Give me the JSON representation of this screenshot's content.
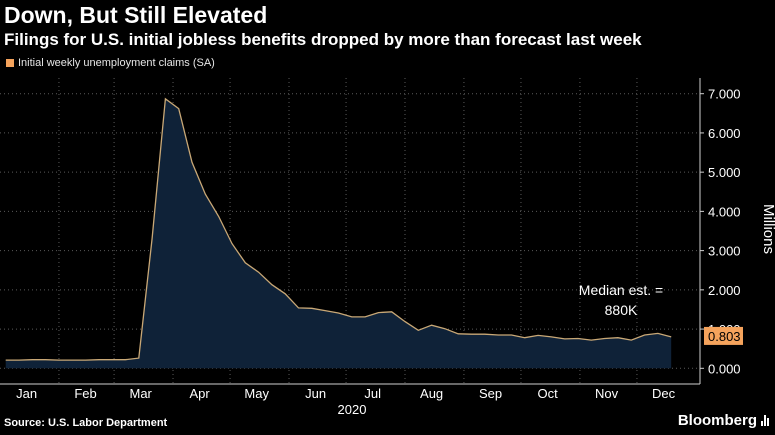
{
  "header": {
    "title": "Down, But Still Elevated",
    "subtitle": "Filings for U.S. initial jobless benefits dropped by more than forecast last week"
  },
  "legend": {
    "label": "Initial weekly unemployment claims (SA)",
    "color": "#f5a35c"
  },
  "annotation": {
    "line1": "Median est. =",
    "line2": "880K"
  },
  "last_value_badge": {
    "text": "0.803",
    "color": "#f5a35c"
  },
  "footer": {
    "source": "Source: U.S. Labor Department",
    "brand": "Bloomberg"
  },
  "colors": {
    "background": "#000000",
    "area_fill": "#0f2238",
    "line": "#c9a876",
    "grid": "#5a5a5a"
  },
  "chart_data": {
    "type": "area",
    "x": [
      "2020-01-04",
      "2020-01-11",
      "2020-01-18",
      "2020-01-25",
      "2020-02-01",
      "2020-02-08",
      "2020-02-15",
      "2020-02-22",
      "2020-02-29",
      "2020-03-07",
      "2020-03-14",
      "2020-03-21",
      "2020-03-28",
      "2020-04-04",
      "2020-04-11",
      "2020-04-18",
      "2020-04-25",
      "2020-05-02",
      "2020-05-09",
      "2020-05-16",
      "2020-05-23",
      "2020-05-30",
      "2020-06-06",
      "2020-06-13",
      "2020-06-20",
      "2020-06-27",
      "2020-07-04",
      "2020-07-11",
      "2020-07-18",
      "2020-07-25",
      "2020-08-01",
      "2020-08-08",
      "2020-08-15",
      "2020-08-22",
      "2020-08-29",
      "2020-09-05",
      "2020-09-12",
      "2020-09-19",
      "2020-09-26",
      "2020-10-03",
      "2020-10-10",
      "2020-10-17",
      "2020-10-24",
      "2020-10-31",
      "2020-11-07",
      "2020-11-14",
      "2020-11-21",
      "2020-11-28",
      "2020-12-05",
      "2020-12-12",
      "2020-12-19"
    ],
    "series": [
      {
        "name": "Initial weekly unemployment claims (SA)",
        "values": [
          0.21,
          0.21,
          0.22,
          0.22,
          0.21,
          0.21,
          0.21,
          0.22,
          0.22,
          0.22,
          0.26,
          3.31,
          6.87,
          6.62,
          5.25,
          4.44,
          3.87,
          3.18,
          2.69,
          2.45,
          2.13,
          1.9,
          1.54,
          1.53,
          1.47,
          1.41,
          1.31,
          1.31,
          1.42,
          1.44,
          1.19,
          0.97,
          1.1,
          1.01,
          0.88,
          0.87,
          0.87,
          0.85,
          0.85,
          0.78,
          0.84,
          0.8,
          0.75,
          0.76,
          0.72,
          0.76,
          0.78,
          0.72,
          0.85,
          0.89,
          0.8
        ]
      }
    ],
    "x_tick_labels": [
      "Jan",
      "Feb",
      "Mar",
      "Apr",
      "May",
      "Jun",
      "Jul",
      "Aug",
      "Sep",
      "Oct",
      "Nov",
      "Dec"
    ],
    "x_tick_dates": [
      "2020-01-15",
      "2020-02-15",
      "2020-03-15",
      "2020-04-15",
      "2020-05-15",
      "2020-06-15",
      "2020-07-15",
      "2020-08-15",
      "2020-09-15",
      "2020-10-15",
      "2020-11-15",
      "2020-12-15"
    ],
    "xlabel": "2020",
    "ylabel": "Millions",
    "y_ticks": [
      0,
      1,
      2,
      3,
      4,
      5,
      6,
      7
    ],
    "y_tick_labels": [
      "0.000",
      "1.000",
      "2.000",
      "3.000",
      "4.000",
      "5.000",
      "6.000",
      "7.000"
    ],
    "ylim": [
      -0.4,
      7.4
    ],
    "grid": true,
    "legend_position": "top-left"
  }
}
